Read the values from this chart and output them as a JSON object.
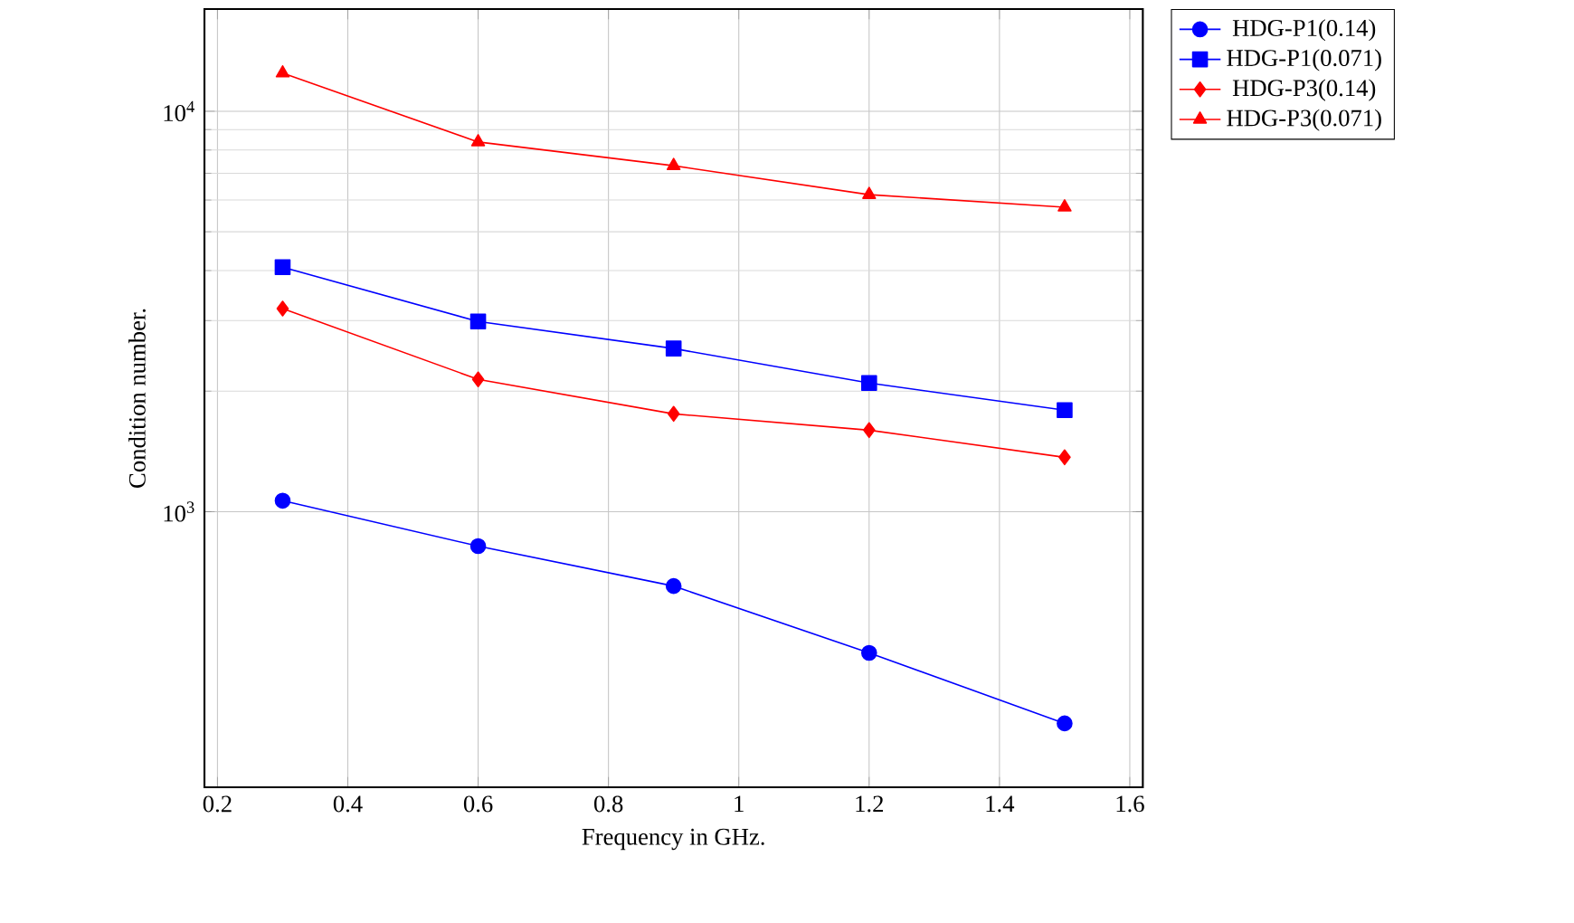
{
  "chart_data": {
    "type": "line",
    "xlabel": "Frequency in GHz.",
    "ylabel": "Condition number.",
    "x": [
      0.3,
      0.6,
      0.9,
      1.2,
      1.5
    ],
    "series": [
      {
        "name": "HDG-P1(0.14)",
        "color": "#0000ff",
        "marker": "circle",
        "values": [
          1065,
          820,
          652,
          444,
          296
        ]
      },
      {
        "name": "HDG-P1(0.071)",
        "color": "#0000ff",
        "marker": "square",
        "values": [
          4080,
          2985,
          2555,
          2095,
          1793
        ]
      },
      {
        "name": "HDG-P3(0.14)",
        "color": "#ff0000",
        "marker": "diamond",
        "values": [
          3215,
          2140,
          1755,
          1598,
          1367
        ]
      },
      {
        "name": "HDG-P3(0.071)",
        "color": "#ff0000",
        "marker": "triangle",
        "values": [
          12450,
          8380,
          7310,
          6190,
          5760
        ]
      }
    ],
    "xlim": [
      0.18,
      1.62
    ],
    "ylim": [
      205,
      18000
    ],
    "xticks": [
      0.2,
      0.4,
      0.6,
      0.8,
      1,
      1.2,
      1.4,
      1.6
    ],
    "yticks": [
      {
        "value": 1000,
        "label": "10$^{3}$"
      },
      {
        "value": 10000,
        "label": "10$^{4}$"
      }
    ],
    "log": "y",
    "grid": true,
    "legend": "top right",
    "line_style": "solid"
  }
}
